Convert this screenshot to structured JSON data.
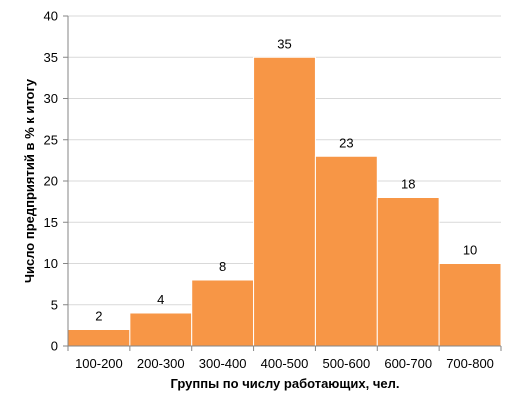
{
  "chart_data": {
    "type": "bar",
    "categories": [
      "100-200",
      "200-300",
      "300-400",
      "400-500",
      "500-600",
      "600-700",
      "700-800"
    ],
    "values": [
      2,
      4,
      8,
      35,
      23,
      18,
      10
    ],
    "data_labels": [
      "2",
      "4",
      "8",
      "35",
      "23",
      "18",
      "10"
    ],
    "xlabel": "Группы по числу работающих, чел.",
    "ylabel": "Число предприятий в % к итогу",
    "ylim": [
      0,
      40
    ],
    "yticks": [
      "0",
      "5",
      "10",
      "15",
      "20",
      "25",
      "30",
      "35",
      "40"
    ],
    "grid": "horizontal",
    "bar_gap": "none",
    "colors": {
      "bar_fill": "#F79646",
      "bar_edge": "#FFFFFF",
      "grid": "#D9D9D9",
      "axis": "#868686"
    }
  }
}
